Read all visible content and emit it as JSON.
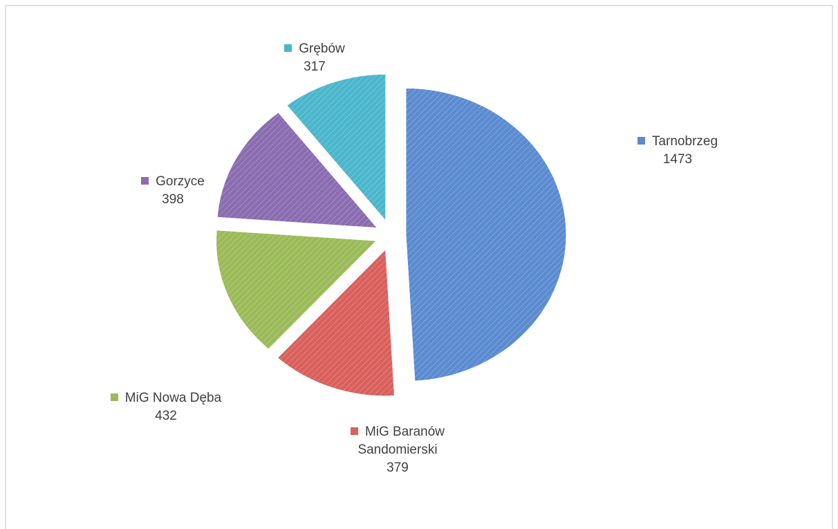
{
  "chart_data": {
    "type": "pie",
    "categories": [
      "Tarnobrzeg",
      "MiG Baranów Sandomierski",
      "MiG Nowa Dęba",
      "Gorzyce",
      "Grębów"
    ],
    "values": [
      1473,
      379,
      432,
      398,
      317
    ],
    "colors": [
      "#5b8bd0",
      "#d9605c",
      "#9bbb59",
      "#8a6cb0",
      "#4bb6cc"
    ],
    "data_labels": true
  }
}
